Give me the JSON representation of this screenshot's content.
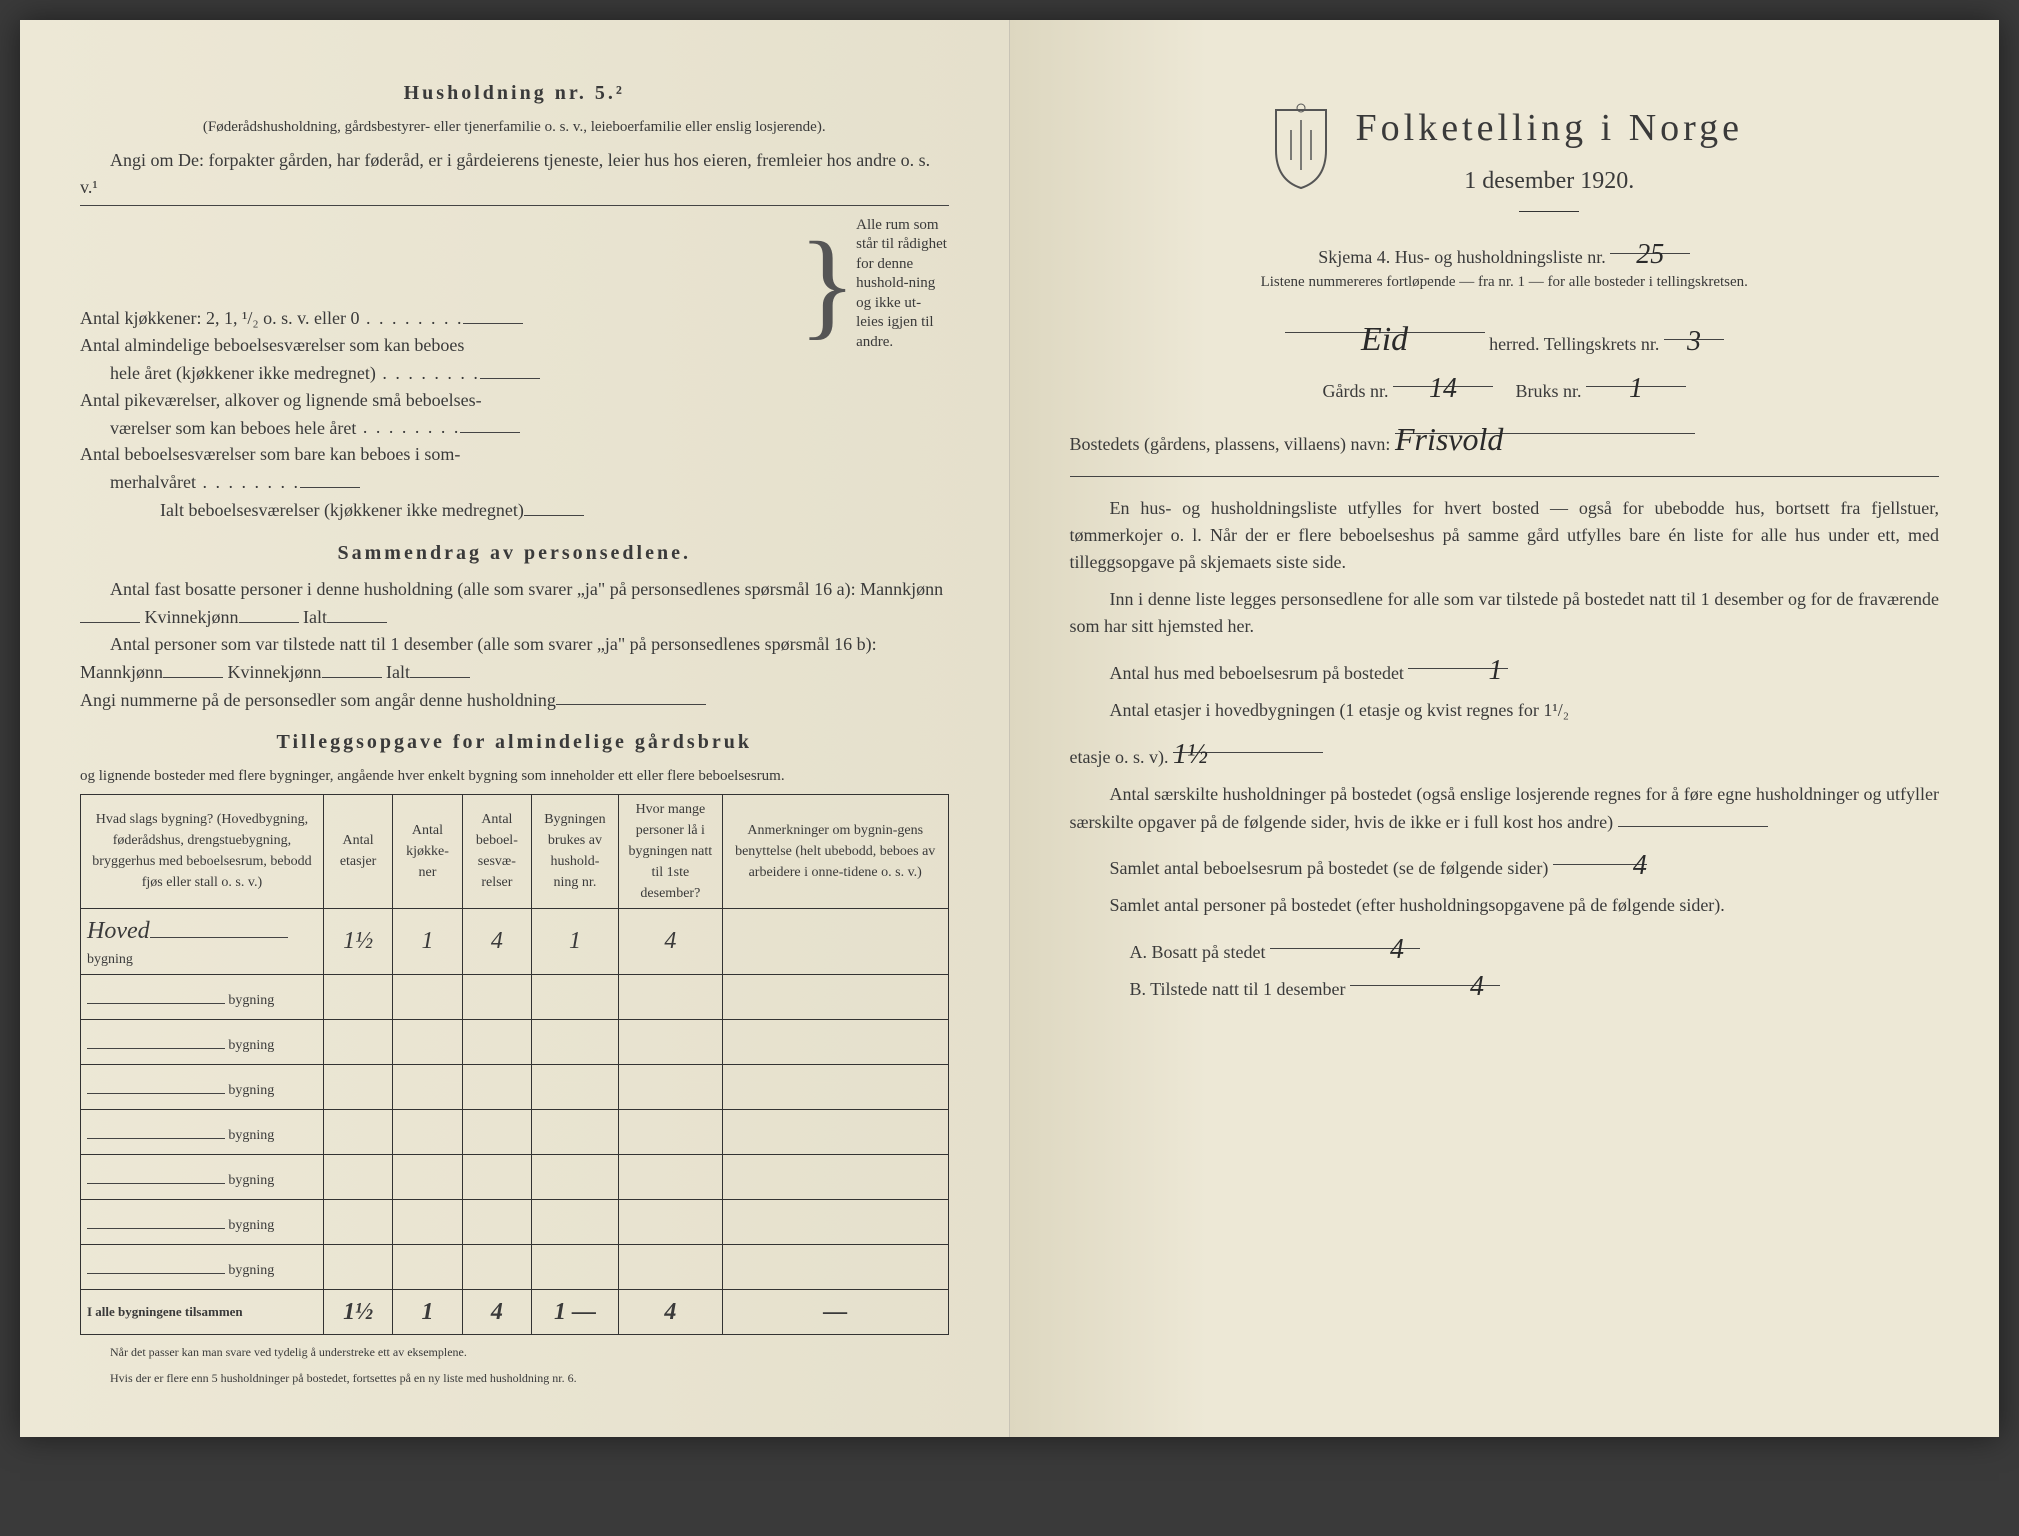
{
  "left": {
    "h5_title": "Husholdning nr. 5.²",
    "h5_sub": "(Føderådshusholdning, gårdsbestyrer- eller tjenerfamilie o. s. v., leieboerfamilie eller enslig losjerende).",
    "angi": "Angi om De: forpakter gården, har føderåd, er i gårdeierens tjeneste, leier hus hos eieren, fremleier hos andre o. s. v.¹",
    "k1": "Antal kjøkkener: 2, 1, ¹/₂ o. s. v. eller 0",
    "k2a": "Antal almindelige beboelsesværelser som kan beboes",
    "k2b": "hele året (kjøkkener ikke medregnet)",
    "k3a": "Antal pikeværelser, alkover og lignende små beboelses-",
    "k3b": "værelser som kan beboes hele året",
    "k4a": "Antal beboelsesværelser som bare kan beboes i som-",
    "k4b": "merhalvåret",
    "k5": "Ialt beboelsesværelser (kjøkkener ikke medregnet)",
    "brace_text": "Alle rum som står til rådighet for denne hushold-ning og ikke ut-leies igjen til andre.",
    "samm_title": "Sammendrag av personsedlene.",
    "samm1": "Antal fast bosatte personer i denne husholdning (alle som svarer „ja\" på personsedlenes spørsmål 16 a): Mannkjønn",
    "samm1b": "Kvinnekjønn",
    "samm1c": "Ialt",
    "samm2": "Antal personer som var tilstede natt til 1 desember (alle som svarer „ja\" på personsedlenes spørsmål 16 b): Mannkjønn",
    "samm3": "Angi nummerne på de personsedler som angår denne husholdning",
    "tillegg_title": "Tilleggsopgave for almindelige gårdsbruk",
    "tillegg_sub": "og lignende bosteder med flere bygninger, angående hver enkelt bygning som inneholder ett eller flere beboelsesrum.",
    "table": {
      "headers": [
        "Hvad slags bygning?\n(Hovedbygning, føderådshus, drengstuebygning, bryggerhus med beboelsesrum, bebodd fjøs eller stall o. s. v.)",
        "Antal etasjer",
        "Antal kjøkke-ner",
        "Antal beboel-sesvæ-relser",
        "Bygningen brukes av hushold-ning nr.",
        "Hvor mange personer lå i bygningen natt til 1ste desember?",
        "Anmerkninger om bygnin-gens benyttelse (helt ubebodd, beboes av arbeidere i onne-tidene o. s. v.)"
      ],
      "row_label": "bygning",
      "rows": [
        {
          "name": "Hoved",
          "et": "1½",
          "kj": "1",
          "bv": "4",
          "hn": "1",
          "pe": "4",
          "an": ""
        },
        {
          "name": "",
          "et": "",
          "kj": "",
          "bv": "",
          "hn": "",
          "pe": "",
          "an": ""
        },
        {
          "name": "",
          "et": "",
          "kj": "",
          "bv": "",
          "hn": "",
          "pe": "",
          "an": ""
        },
        {
          "name": "",
          "et": "",
          "kj": "",
          "bv": "",
          "hn": "",
          "pe": "",
          "an": ""
        },
        {
          "name": "",
          "et": "",
          "kj": "",
          "bv": "",
          "hn": "",
          "pe": "",
          "an": ""
        },
        {
          "name": "",
          "et": "",
          "kj": "",
          "bv": "",
          "hn": "",
          "pe": "",
          "an": ""
        },
        {
          "name": "",
          "et": "",
          "kj": "",
          "bv": "",
          "hn": "",
          "pe": "",
          "an": ""
        },
        {
          "name": "",
          "et": "",
          "kj": "",
          "bv": "",
          "hn": "",
          "pe": "",
          "an": ""
        }
      ],
      "total_label": "I alle bygningene tilsammen",
      "total": {
        "et": "1½",
        "kj": "1",
        "bv": "4",
        "hn": "1 —",
        "pe": "4",
        "an": "—"
      }
    },
    "foot1": "Når det passer kan man svare ved tydelig å understreke ett av eksemplene.",
    "foot2": "Hvis der er flere enn 5 husholdninger på bostedet, fortsettes på en ny liste med husholdning nr. 6."
  },
  "right": {
    "big_title": "Folketelling i Norge",
    "sub_title": "1 desember 1920.",
    "skjema": "Skjema 4.   Hus- og husholdningsliste nr.",
    "skjema_val": "25",
    "listene": "Listene nummereres fortløpende — fra nr. 1 — for alle bosteder i tellingskretsen.",
    "herred_val": "Eid",
    "herred_label": "herred.   Tellingskrets nr.",
    "krets_val": "3",
    "gards_label": "Gårds nr.",
    "gards_val": "14",
    "bruks_label": "Bruks nr.",
    "bruks_val": "1",
    "bostedet_label": "Bostedets (gårdens, plassens, villaens) navn:",
    "bostedet_val": "Frisvold",
    "p1": "En hus- og husholdningsliste utfylles for hvert bosted — også for ubebodde hus, bortsett fra fjellstuer, tømmerkojer o. l.  Når der er flere beboelseshus på samme gård utfylles bare én liste for alle hus under ett, med tilleggsopgave på skjemaets siste side.",
    "p2": "Inn i denne liste legges personsedlene for alle som var tilstede på bostedet natt til 1 desember og for de fraværende som har sitt hjemsted her.",
    "q1": "Antal hus med beboelsesrum på bostedet",
    "q1_val": "1",
    "q2a": "Antal etasjer i hovedbygningen (1 etasje og kvist regnes for 1¹/₂",
    "q2b": "etasje o. s. v).",
    "q2_val": "1½",
    "q3": "Antal særskilte husholdninger på bostedet (også enslige losjerende regnes for å føre egne husholdninger og utfyller særskilte opgaver på de følgende sider, hvis de ikke er i full kost hos andre)",
    "q4": "Samlet antal beboelsesrum på bostedet (se de følgende sider)",
    "q4_val": "4",
    "q5": "Samlet antal personer på bostedet (efter husholdningsopgavene på de følgende sider).",
    "qA": "A.  Bosatt på stedet",
    "qA_val": "4",
    "qB": "B.  Tilstede natt til 1 desember",
    "qB_val": "4"
  }
}
